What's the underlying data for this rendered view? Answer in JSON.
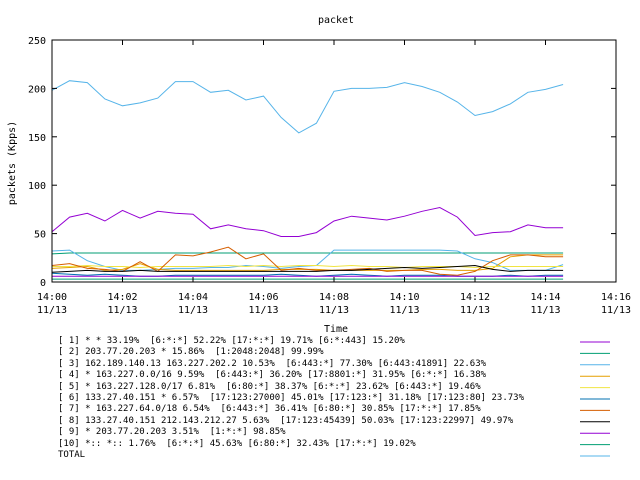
{
  "chart_data": {
    "type": "line",
    "title": "packet",
    "xlabel": "Time",
    "ylabel": "packets (Kpps)",
    "ylim": [
      0,
      250
    ],
    "yticks": [
      "0",
      "50",
      "100",
      "150",
      "200",
      "250"
    ],
    "xticks": [
      {
        "time": "14:00",
        "date": "11/13"
      },
      {
        "time": "14:02",
        "date": "11/13"
      },
      {
        "time": "14:04",
        "date": "11/13"
      },
      {
        "time": "14:06",
        "date": "11/13"
      },
      {
        "time": "14:08",
        "date": "11/13"
      },
      {
        "time": "14:10",
        "date": "11/13"
      },
      {
        "time": "14:12",
        "date": "11/13"
      },
      {
        "time": "14:14",
        "date": "11/13"
      },
      {
        "time": "14:16",
        "date": "11/13"
      }
    ],
    "xlim_minutes": [
      0,
      16
    ],
    "x_minutes": [
      0,
      0.5,
      1.0,
      1.5,
      2.0,
      2.5,
      3.0,
      3.5,
      4.0,
      4.5,
      5.0,
      5.5,
      6.0,
      6.5,
      7.0,
      7.5,
      8.0,
      8.5,
      9.0,
      9.5,
      10.0,
      10.5,
      11.0,
      11.5,
      12.0,
      12.5,
      13.0,
      13.5,
      14.0,
      14.5
    ],
    "legend_placement": "bottom",
    "series": [
      {
        "name": "[ 1] * * 33.19%  [6:*:*] 52.22% [17:*:*] 19.71% [6:*:443] 15.20%",
        "color": "#9400d3",
        "values": [
          52,
          67,
          71,
          63,
          74,
          66,
          73,
          71,
          70,
          55,
          59,
          55,
          53,
          47,
          47,
          51,
          63,
          68,
          66,
          64,
          68,
          73,
          77,
          67,
          48,
          51,
          52,
          59,
          56,
          56
        ]
      },
      {
        "name": "[ 2] 203.77.20.203 * 15.86%  [1:2048:2048] 99.99%",
        "color": "#009e73",
        "values": [
          29,
          30,
          30,
          30,
          30,
          30,
          30,
          30,
          30,
          30,
          30,
          30,
          30,
          30,
          30,
          30,
          30,
          30,
          30,
          30,
          30,
          30,
          30,
          30,
          30,
          30,
          30,
          30,
          30,
          30
        ]
      },
      {
        "name": "[ 3] 162.189.140.13 163.227.202.2 10.53%  [6:443:*] 77.30% [6:443:41891] 22.63%",
        "color": "#56b4e9",
        "values": [
          32,
          33,
          22,
          16,
          12,
          12,
          13,
          14,
          14,
          15,
          15,
          17,
          16,
          14,
          16,
          17,
          33,
          33,
          33,
          33,
          33,
          33,
          33,
          32,
          24,
          20,
          12,
          12,
          12,
          18
        ]
      },
      {
        "name": "[ 4] * 163.227.0.0/16 9.59%  [6:443:*] 36.20% [17:8801:*] 31.95% [6:*:*] 16.38%",
        "color": "#e69f00",
        "values": [
          14,
          15,
          16,
          12,
          13,
          19,
          13,
          12,
          12,
          12,
          12,
          12,
          12,
          13,
          13,
          13,
          12,
          12,
          12,
          12,
          12,
          13,
          13,
          12,
          12,
          14,
          26,
          28,
          28,
          28
        ]
      },
      {
        "name": "[ 5] * 163.227.128.0/17 6.81%  [6:80:*] 38.37% [6:*:*] 23.62% [6:443:*] 19.46%",
        "color": "#f0e442",
        "values": [
          16,
          16,
          17,
          16,
          16,
          15,
          16,
          16,
          16,
          16,
          17,
          16,
          17,
          16,
          17,
          17,
          16,
          17,
          16,
          16,
          15,
          16,
          16,
          16,
          15,
          16,
          16,
          16,
          16,
          16
        ]
      },
      {
        "name": "[ 6] 133.27.40.151 * 6.57%  [17:123:27000] 45.01% [17:123:*] 31.18% [17:123:80] 23.73%",
        "color": "#0072b2",
        "values": [
          9,
          8,
          7,
          8,
          7,
          6,
          6,
          7,
          7,
          7,
          7,
          7,
          7,
          8,
          7,
          6,
          7,
          8,
          7,
          6,
          7,
          7,
          7,
          6,
          6,
          6,
          7,
          6,
          7,
          7
        ]
      },
      {
        "name": "[ 7] * 163.227.64.0/18 6.54%  [6:443:*] 36.41% [6:80:*] 30.85% [17:*:*] 17.85%",
        "color": "#d55e00",
        "values": [
          17,
          19,
          14,
          13,
          11,
          21,
          11,
          28,
          27,
          31,
          36,
          24,
          29,
          12,
          14,
          12,
          12,
          13,
          14,
          11,
          12,
          12,
          8,
          7,
          11,
          22,
          28,
          28,
          26,
          26
        ]
      },
      {
        "name": "[ 8] 133.27.40.151 212.143.212.27 5.63%  [17:123:45439] 50.03% [17:123:22997] 49.97%",
        "color": "#000000",
        "values": [
          10,
          11,
          12,
          11,
          11,
          12,
          11,
          11,
          11,
          11,
          11,
          11,
          11,
          11,
          11,
          11,
          12,
          12,
          13,
          14,
          15,
          14,
          15,
          16,
          17,
          13,
          11,
          12,
          12,
          12
        ]
      },
      {
        "name": "[ 9] * 203.77.20.203 3.51%  [1:*:*] 98.85%",
        "color": "#9400d3",
        "values": [
          6,
          6,
          6,
          6,
          6,
          6,
          6,
          6,
          6,
          6,
          6,
          6,
          6,
          6,
          6,
          6,
          6,
          6,
          6,
          6,
          6,
          6,
          6,
          6,
          6,
          6,
          6,
          6,
          6,
          6
        ]
      },
      {
        "name": "[10] *:: *:: 1.76%  [6:*:*] 45.63% [6:80:*] 32.43% [17:*:*] 19.02%",
        "color": "#009e73",
        "values": [
          3,
          3,
          3,
          3,
          3,
          3,
          3,
          3,
          3,
          3,
          3,
          3,
          3,
          3,
          3,
          3,
          3,
          3,
          3,
          3,
          3,
          3,
          3,
          3,
          3,
          3,
          3,
          3,
          3,
          3
        ]
      },
      {
        "name": "TOTAL",
        "color": "#56b4e9",
        "values": [
          198,
          208,
          206,
          189,
          182,
          185,
          190,
          207,
          207,
          196,
          198,
          188,
          192,
          170,
          154,
          164,
          197,
          200,
          200,
          201,
          206,
          202,
          196,
          186,
          172,
          176,
          184,
          196,
          199,
          204
        ]
      }
    ]
  }
}
